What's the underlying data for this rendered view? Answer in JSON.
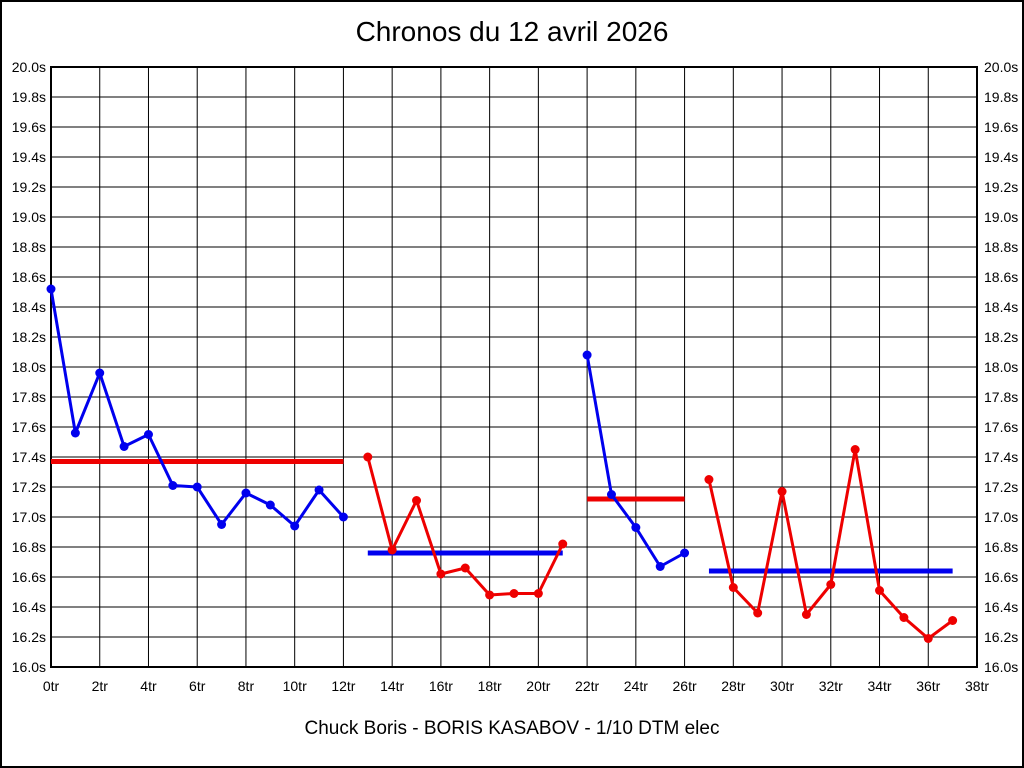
{
  "title": "Chronos du 12 avril 2026",
  "footer": "Chuck Boris - BORIS KASABOV - 1/10 DTM elec",
  "colors": {
    "blue_series": "#0000ee",
    "red_series": "#ee0000",
    "grid": "#000000",
    "background": "#ffffff",
    "text": "#000000"
  },
  "chart_data": {
    "type": "line",
    "title": "Chronos du 12 avril 2026",
    "subtitle": "Chuck Boris - BORIS KASABOV - 1/10 DTM elec",
    "x_unit": "tr",
    "y_unit": "s",
    "xlim": [
      0,
      38
    ],
    "ylim": [
      16.0,
      20.0
    ],
    "x_tick_step": 2,
    "y_tick_step": 0.2,
    "grid": true,
    "legend_position": "none",
    "x_tick_labels": [
      "0tr",
      "2tr",
      "4tr",
      "6tr",
      "8tr",
      "10tr",
      "12tr",
      "14tr",
      "16tr",
      "18tr",
      "20tr",
      "22tr",
      "24tr",
      "26tr",
      "28tr",
      "30tr",
      "32tr",
      "34tr",
      "36tr",
      "38tr"
    ],
    "y_tick_labels": [
      "20.0s",
      "19.8s",
      "19.6s",
      "19.4s",
      "19.2s",
      "19.0s",
      "18.8s",
      "18.6s",
      "18.4s",
      "18.2s",
      "18.0s",
      "17.8s",
      "17.6s",
      "17.4s",
      "17.2s",
      "17.0s",
      "16.8s",
      "16.6s",
      "16.4s",
      "16.2s",
      "16.0s"
    ],
    "y_labels_on_both_sides": true,
    "series": [
      {
        "name": "run-1-laps",
        "kind": "line+markers",
        "color": "#0000ee",
        "start_x": 0,
        "y": [
          18.52,
          17.56,
          17.96,
          17.47,
          17.55,
          17.21,
          17.2,
          16.95,
          17.16,
          17.08,
          16.94,
          17.18,
          17.0
        ]
      },
      {
        "name": "run-1-average",
        "kind": "hline",
        "color": "#ee0000",
        "x_range": [
          0,
          12
        ],
        "y": 17.37
      },
      {
        "name": "run-2-laps",
        "kind": "line+markers",
        "color": "#ee0000",
        "start_x": 13,
        "y": [
          17.4,
          16.78,
          17.11,
          16.62,
          16.66,
          16.48,
          16.49,
          16.49,
          16.82
        ]
      },
      {
        "name": "run-2-average",
        "kind": "hline",
        "color": "#0000ee",
        "x_range": [
          13,
          21
        ],
        "y": 16.76
      },
      {
        "name": "run-3-laps",
        "kind": "line+markers",
        "color": "#0000ee",
        "start_x": 22,
        "y": [
          18.08,
          17.15,
          16.93,
          16.67,
          16.76
        ]
      },
      {
        "name": "run-3-average",
        "kind": "hline",
        "color": "#ee0000",
        "x_range": [
          22,
          26
        ],
        "y": 17.12
      },
      {
        "name": "run-4-laps",
        "kind": "line+markers",
        "color": "#ee0000",
        "start_x": 27,
        "y": [
          17.25,
          16.53,
          16.36,
          17.17,
          16.35,
          16.55,
          17.45,
          16.51,
          16.33,
          16.19,
          16.31
        ]
      },
      {
        "name": "run-4-average",
        "kind": "hline",
        "color": "#0000ee",
        "x_range": [
          27,
          37
        ],
        "y": 16.64
      }
    ]
  }
}
